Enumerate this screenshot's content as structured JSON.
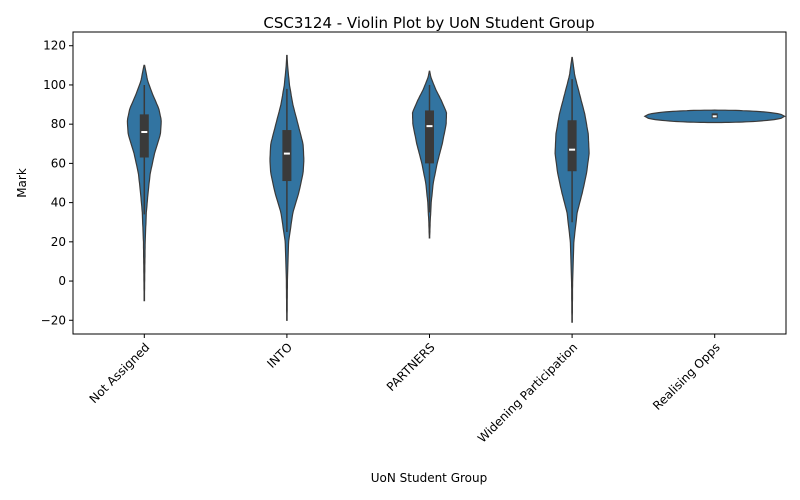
{
  "chart_data": {
    "type": "violin",
    "title": "CSC3124 - Violin Plot by UoN Student Group",
    "xlabel": "UoN Student Group",
    "ylabel": "Mark",
    "ylim": [
      -27,
      127
    ],
    "yticks": [
      -20,
      0,
      20,
      40,
      60,
      80,
      100,
      120
    ],
    "ytick_labels": [
      "−20",
      "0",
      "20",
      "40",
      "60",
      "80",
      "100",
      "120"
    ],
    "categories": [
      "Not Assigned",
      "INTO",
      "PARTNERS",
      "Widening Participation",
      "Realising Opps"
    ],
    "fill_color": "#3274a1",
    "outline_color": "#3a3a3a",
    "violins": [
      {
        "category": "Not Assigned",
        "min": -10,
        "max": 110,
        "q1": 63,
        "median": 76,
        "q3": 85,
        "whisker_low": 34,
        "whisker_high": 100,
        "profile": [
          [
            -10,
            0.01
          ],
          [
            0,
            0.02
          ],
          [
            20,
            0.05
          ],
          [
            35,
            0.12
          ],
          [
            45,
            0.22
          ],
          [
            55,
            0.35
          ],
          [
            65,
            0.6
          ],
          [
            75,
            0.95
          ],
          [
            82,
            1.0
          ],
          [
            88,
            0.85
          ],
          [
            95,
            0.5
          ],
          [
            102,
            0.2
          ],
          [
            110,
            0.02
          ]
        ]
      },
      {
        "category": "INTO",
        "min": -20,
        "max": 115,
        "q1": 51,
        "median": 65,
        "q3": 77,
        "whisker_low": 25,
        "whisker_high": 98,
        "profile": [
          [
            -20,
            0.01
          ],
          [
            0,
            0.03
          ],
          [
            20,
            0.1
          ],
          [
            35,
            0.35
          ],
          [
            45,
            0.7
          ],
          [
            55,
            0.95
          ],
          [
            62,
            1.0
          ],
          [
            70,
            0.95
          ],
          [
            80,
            0.65
          ],
          [
            90,
            0.35
          ],
          [
            100,
            0.15
          ],
          [
            110,
            0.04
          ],
          [
            115,
            0.01
          ]
        ]
      },
      {
        "category": "PARTNERS",
        "min": 22,
        "max": 107,
        "q1": 60,
        "median": 79,
        "q3": 87,
        "whisker_low": 35,
        "whisker_high": 100,
        "profile": [
          [
            22,
            0.01
          ],
          [
            30,
            0.04
          ],
          [
            40,
            0.1
          ],
          [
            50,
            0.22
          ],
          [
            60,
            0.45
          ],
          [
            70,
            0.75
          ],
          [
            80,
            0.98
          ],
          [
            86,
            1.0
          ],
          [
            92,
            0.7
          ],
          [
            98,
            0.35
          ],
          [
            104,
            0.08
          ],
          [
            107,
            0.01
          ]
        ]
      },
      {
        "category": "Widening Participation",
        "min": -21,
        "max": 114,
        "q1": 56,
        "median": 67,
        "q3": 82,
        "whisker_low": 30,
        "whisker_high": 103,
        "profile": [
          [
            -21,
            0.01
          ],
          [
            0,
            0.03
          ],
          [
            20,
            0.1
          ],
          [
            35,
            0.3
          ],
          [
            45,
            0.6
          ],
          [
            55,
            0.85
          ],
          [
            65,
            1.0
          ],
          [
            75,
            0.95
          ],
          [
            85,
            0.75
          ],
          [
            95,
            0.45
          ],
          [
            105,
            0.15
          ],
          [
            114,
            0.01
          ]
        ]
      },
      {
        "category": "Realising Opps",
        "min": 80.5,
        "max": 87.5,
        "q1": 83,
        "median": 84,
        "q3": 85.5,
        "whisker_low": 82,
        "whisker_high": 86.5,
        "horizontal_halfwidth_units": 0.49,
        "profile": [
          [
            80.5,
            0.04
          ],
          [
            81.5,
            0.3
          ],
          [
            82.5,
            0.75
          ],
          [
            84,
            1.0
          ],
          [
            85.5,
            0.8
          ],
          [
            86.5,
            0.45
          ],
          [
            87.5,
            0.04
          ]
        ]
      }
    ]
  }
}
